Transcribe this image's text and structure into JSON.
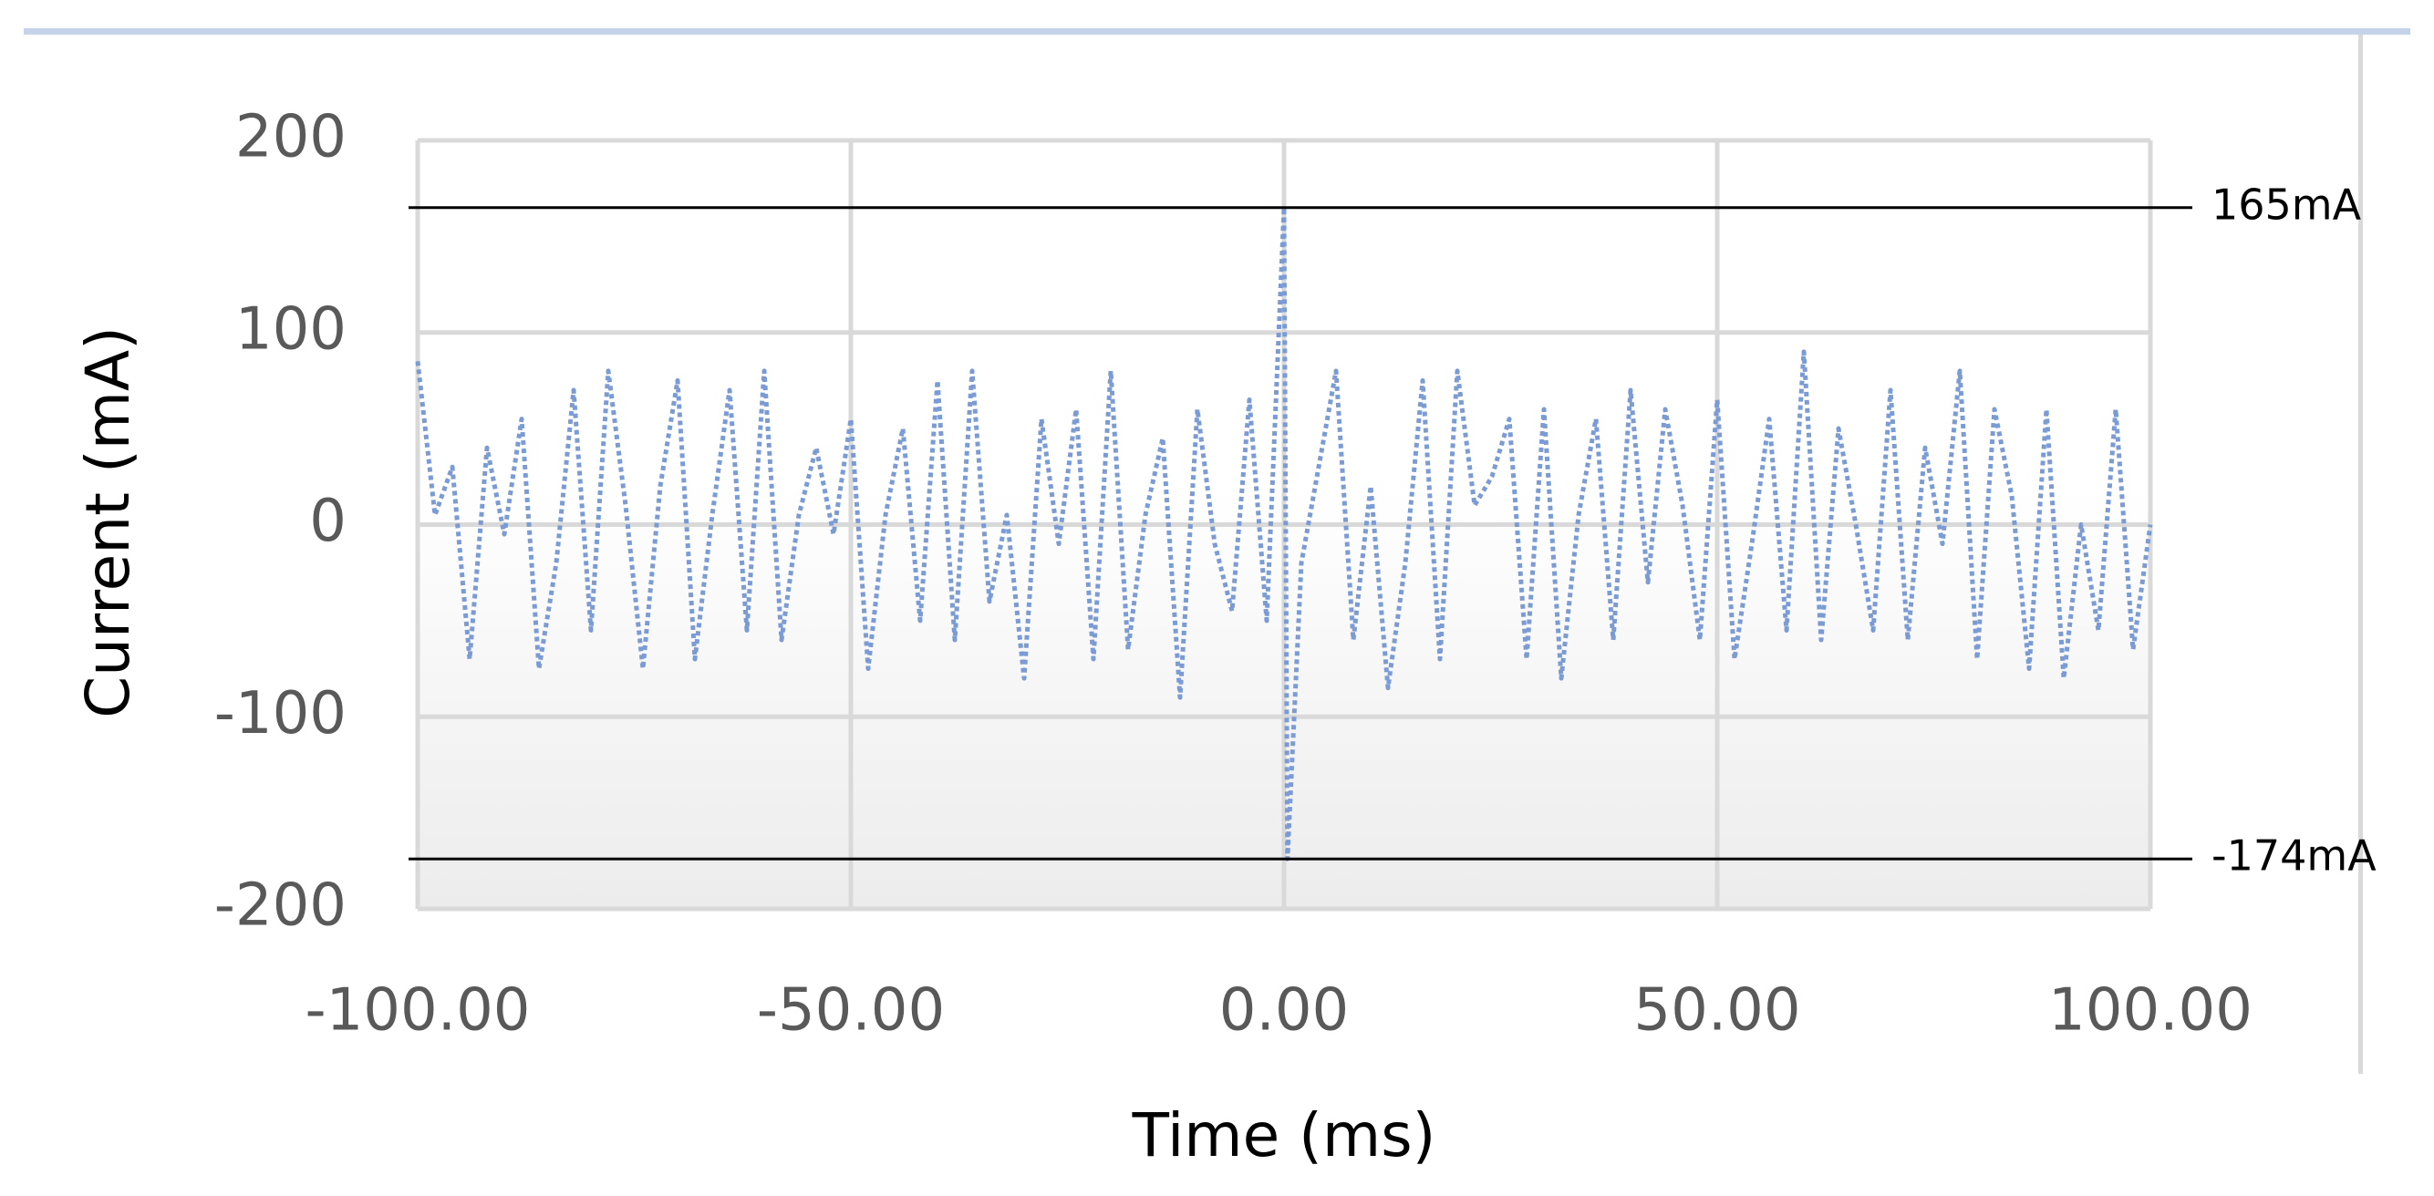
{
  "chart_data": {
    "type": "line",
    "x_label": "Time (ms)",
    "y_label": "Current (mA)",
    "xlim": [
      -100,
      100
    ],
    "xticks": [
      {
        "value": -100,
        "label": "-100.00"
      },
      {
        "value": -50,
        "label": "-50.00"
      },
      {
        "value": 0,
        "label": "0.00"
      },
      {
        "value": 50,
        "label": "50.00"
      },
      {
        "value": 100,
        "label": "100.00"
      }
    ],
    "ylim": [
      -200,
      200
    ],
    "yticks": [
      -200,
      -100,
      0,
      100,
      200
    ],
    "grid": true,
    "x": [
      -100,
      -98,
      -96,
      -94,
      -92,
      -90,
      -88,
      -86,
      -84,
      -82,
      -80,
      -78,
      -76,
      -74,
      -72,
      -70,
      -68,
      -66,
      -64,
      -62,
      -60,
      -58,
      -56,
      -54,
      -52,
      -50,
      -48,
      -46,
      -44,
      -42,
      -40,
      -38,
      -36,
      -34,
      -32,
      -30,
      -28,
      -26,
      -24,
      -22,
      -20,
      -18,
      -16,
      -14,
      -12,
      -10,
      -8,
      -6,
      -4,
      -2,
      0,
      0.4,
      2,
      4,
      6,
      8,
      10,
      12,
      14,
      16,
      18,
      20,
      22,
      24,
      26,
      28,
      30,
      32,
      34,
      36,
      38,
      40,
      42,
      44,
      46,
      48,
      50,
      52,
      54,
      56,
      58,
      60,
      62,
      64,
      66,
      68,
      70,
      72,
      74,
      76,
      78,
      80,
      82,
      84,
      86,
      88,
      90,
      92,
      94,
      96,
      98,
      100
    ],
    "series": [
      {
        "name": "Current",
        "color": "#7b9bd4",
        "values": [
          85,
          5,
          30,
          -70,
          40,
          -5,
          55,
          -75,
          -20,
          70,
          -55,
          80,
          10,
          -75,
          20,
          75,
          -70,
          5,
          70,
          -55,
          80,
          -60,
          5,
          40,
          -5,
          55,
          -75,
          5,
          50,
          -50,
          75,
          -60,
          80,
          -40,
          5,
          -80,
          55,
          -10,
          60,
          -70,
          80,
          -65,
          5,
          45,
          -90,
          60,
          -10,
          -45,
          65,
          -50,
          165,
          -174,
          -20,
          30,
          80,
          -60,
          20,
          -85,
          -20,
          75,
          -70,
          80,
          10,
          25,
          55,
          -70,
          60,
          -80,
          5,
          55,
          -60,
          70,
          -30,
          60,
          10,
          -60,
          65,
          -70,
          -10,
          55,
          -55,
          90,
          -60,
          50,
          0,
          -55,
          70,
          -60,
          40,
          -10,
          80,
          -70,
          60,
          15,
          -75,
          60,
          -80,
          0,
          -55,
          60,
          -65,
          0
        ]
      }
    ],
    "ref_lines": [
      {
        "value": 165,
        "label": "165mA"
      },
      {
        "value": -174,
        "label": "-174mA"
      }
    ]
  }
}
